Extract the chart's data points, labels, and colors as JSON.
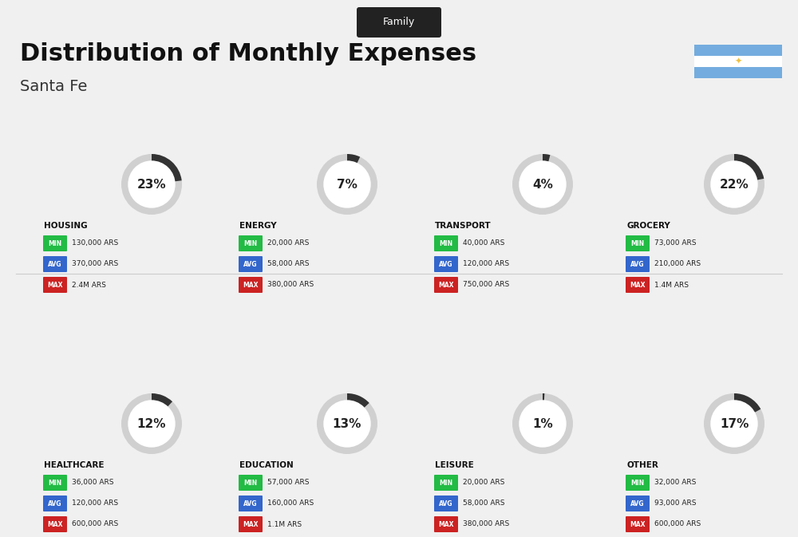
{
  "title": "Distribution of Monthly Expenses",
  "subtitle": "Santa Fe",
  "family_label": "Family",
  "background_color": "#f0f0f0",
  "categories": [
    {
      "name": "HOUSING",
      "pct": 23,
      "min": "130,000 ARS",
      "avg": "370,000 ARS",
      "max": "2.4M ARS",
      "icon_color": "#2255aa",
      "row": 0,
      "col": 0
    },
    {
      "name": "ENERGY",
      "pct": 7,
      "min": "20,000 ARS",
      "avg": "58,000 ARS",
      "max": "380,000 ARS",
      "icon_color": "#ffaa00",
      "row": 0,
      "col": 1
    },
    {
      "name": "TRANSPORT",
      "pct": 4,
      "min": "40,000 ARS",
      "avg": "120,000 ARS",
      "max": "750,000 ARS",
      "icon_color": "#00aacc",
      "row": 0,
      "col": 2
    },
    {
      "name": "GROCERY",
      "pct": 22,
      "min": "73,000 ARS",
      "avg": "210,000 ARS",
      "max": "1.4M ARS",
      "icon_color": "#88cc44",
      "row": 0,
      "col": 3
    },
    {
      "name": "HEALTHCARE",
      "pct": 12,
      "min": "36,000 ARS",
      "avg": "120,000 ARS",
      "max": "600,000 ARS",
      "icon_color": "#ff4488",
      "row": 1,
      "col": 0
    },
    {
      "name": "EDUCATION",
      "pct": 13,
      "min": "57,000 ARS",
      "avg": "160,000 ARS",
      "max": "1.1M ARS",
      "icon_color": "#3366cc",
      "row": 1,
      "col": 1
    },
    {
      "name": "LEISURE",
      "pct": 1,
      "min": "20,000 ARS",
      "avg": "58,000 ARS",
      "max": "380,000 ARS",
      "icon_color": "#ee4422",
      "row": 1,
      "col": 2
    },
    {
      "name": "OTHER",
      "pct": 17,
      "min": "32,000 ARS",
      "avg": "93,000 ARS",
      "max": "600,000 ARS",
      "icon_color": "#cc8833",
      "row": 1,
      "col": 3
    }
  ],
  "min_color": "#22bb44",
  "avg_color": "#3366cc",
  "max_color": "#cc2222",
  "label_colors": {
    "MIN": "#22bb44",
    "AVG": "#3366cc",
    "MAX": "#cc2222"
  },
  "donut_bg": "#e0e0e0",
  "donut_fill": "#333333",
  "argentina_colors": [
    "#74acdf",
    "#ffffff",
    "#74acdf"
  ]
}
